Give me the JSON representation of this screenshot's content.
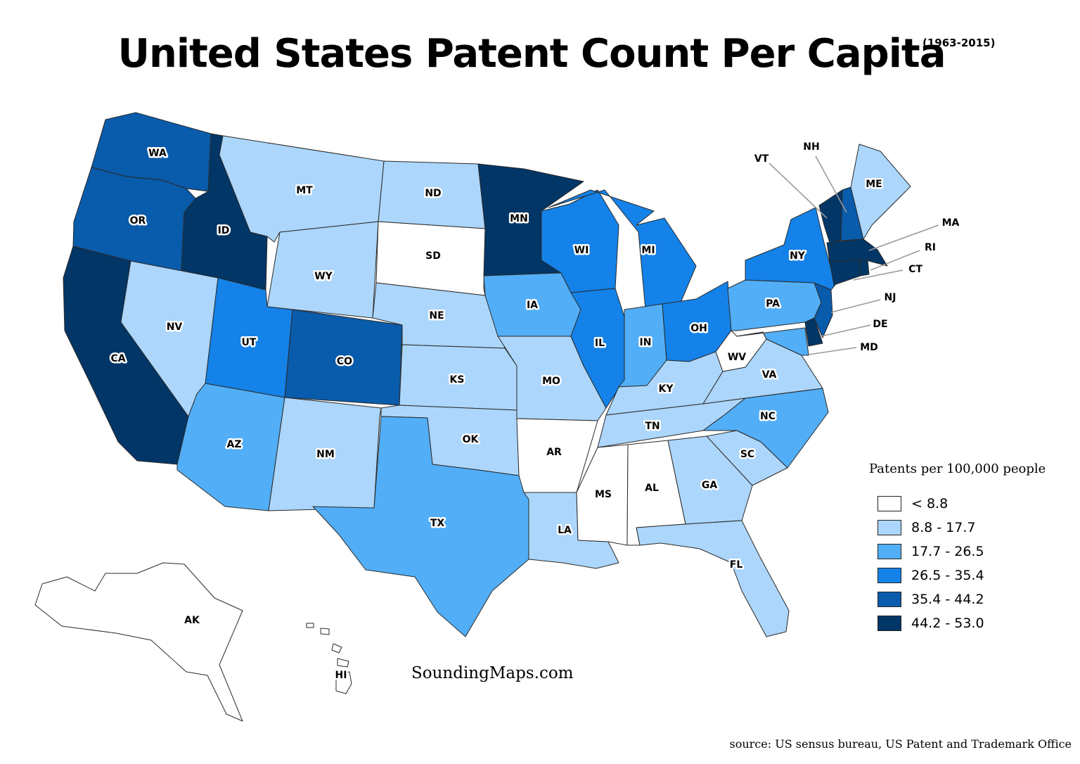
{
  "title": "United States Patent Count Per Capita",
  "subtitle": "(1963-2015)",
  "colors": {
    "c0": "#ffffff",
    "c1": "#acd6fb",
    "c2": "#52aef6",
    "c3": "#1482e8",
    "c4": "#095bab",
    "c5": "#023667"
  },
  "legend": {
    "title": "Patents per 100,000 people",
    "items": [
      {
        "label": "<  8.8",
        "color": "#ffffff"
      },
      {
        "label": "8.8 - 17.7",
        "color": "#acd6fb"
      },
      {
        "label": "17.7 - 26.5",
        "color": "#52aef6"
      },
      {
        "label": "26.5 - 35.4",
        "color": "#1482e8"
      },
      {
        "label": "35.4 - 44.2",
        "color": "#095bab"
      },
      {
        "label": "44.2 - 53.0",
        "color": "#023667"
      }
    ]
  },
  "states": [
    {
      "abbr": "WA",
      "class": 4
    },
    {
      "abbr": "OR",
      "class": 4
    },
    {
      "abbr": "CA",
      "class": 5
    },
    {
      "abbr": "ID",
      "class": 5
    },
    {
      "abbr": "NV",
      "class": 1
    },
    {
      "abbr": "MT",
      "class": 1
    },
    {
      "abbr": "WY",
      "class": 1
    },
    {
      "abbr": "UT",
      "class": 3
    },
    {
      "abbr": "CO",
      "class": 4
    },
    {
      "abbr": "AZ",
      "class": 2
    },
    {
      "abbr": "NM",
      "class": 1
    },
    {
      "abbr": "ND",
      "class": 1
    },
    {
      "abbr": "SD",
      "class": 0
    },
    {
      "abbr": "NE",
      "class": 1
    },
    {
      "abbr": "KS",
      "class": 1
    },
    {
      "abbr": "OK",
      "class": 1
    },
    {
      "abbr": "TX",
      "class": 2
    },
    {
      "abbr": "MN",
      "class": 5
    },
    {
      "abbr": "IA",
      "class": 2
    },
    {
      "abbr": "MO",
      "class": 1
    },
    {
      "abbr": "AR",
      "class": 0
    },
    {
      "abbr": "LA",
      "class": 1
    },
    {
      "abbr": "WI",
      "class": 3
    },
    {
      "abbr": "IL",
      "class": 3
    },
    {
      "abbr": "MI",
      "class": 3
    },
    {
      "abbr": "IN",
      "class": 2
    },
    {
      "abbr": "OH",
      "class": 3
    },
    {
      "abbr": "KY",
      "class": 1
    },
    {
      "abbr": "TN",
      "class": 1
    },
    {
      "abbr": "MS",
      "class": 0
    },
    {
      "abbr": "AL",
      "class": 0
    },
    {
      "abbr": "GA",
      "class": 1
    },
    {
      "abbr": "FL",
      "class": 1
    },
    {
      "abbr": "SC",
      "class": 1
    },
    {
      "abbr": "NC",
      "class": 2
    },
    {
      "abbr": "VA",
      "class": 1
    },
    {
      "abbr": "WV",
      "class": 0
    },
    {
      "abbr": "MD",
      "class": 2
    },
    {
      "abbr": "DE",
      "class": 5
    },
    {
      "abbr": "NJ",
      "class": 4
    },
    {
      "abbr": "PA",
      "class": 2
    },
    {
      "abbr": "NY",
      "class": 3
    },
    {
      "abbr": "CT",
      "class": 5
    },
    {
      "abbr": "RI",
      "class": 5
    },
    {
      "abbr": "MA",
      "class": 5
    },
    {
      "abbr": "VT",
      "class": 5
    },
    {
      "abbr": "NH",
      "class": 4
    },
    {
      "abbr": "ME",
      "class": 1
    },
    {
      "abbr": "AK",
      "class": 0
    },
    {
      "abbr": "HI",
      "class": 0
    }
  ],
  "credit": "SoundingMaps.com",
  "source": "source: US sensus bureau, US Patent and Trademark Office"
}
